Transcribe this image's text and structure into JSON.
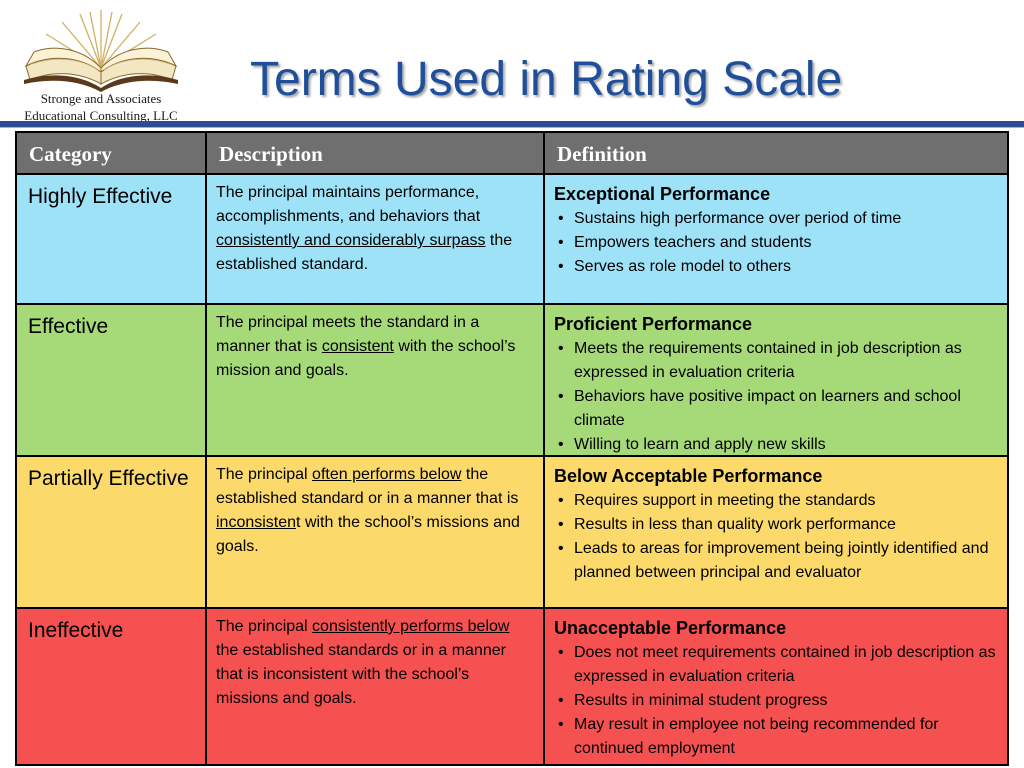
{
  "logo": {
    "line1": "Stronge and Associates",
    "line2": "Educational Consulting, LLC",
    "icon": "open-book-icon"
  },
  "title": "Terms Used in Rating Scale",
  "colors": {
    "title": "#1f4f9a",
    "header_bg": "#6f6f6f",
    "highly_effective_bg": "#9ee2f8",
    "effective_bg": "#a6d978",
    "partially_effective_bg": "#fbd96a",
    "ineffective_bg": "#f55151"
  },
  "table": {
    "headers": [
      "Category",
      "Description",
      "Definition"
    ],
    "rows": [
      {
        "category": "Highly Effective",
        "description": {
          "parts": [
            "The principal maintains performance, accomplishments, and behaviors that ",
            "consistently and considerably surpass",
            " the established standard."
          ]
        },
        "definition_title": "Exceptional Performance",
        "bullets": [
          "Sustains high performance over period of time",
          "Empowers teachers and students",
          "Serves as role model to others"
        ]
      },
      {
        "category": "Effective",
        "description": {
          "parts": [
            "The principal meets the standard in a manner that is ",
            "consistent",
            " with the school’s mission and goals."
          ]
        },
        "definition_title": "Proficient Performance",
        "bullets": [
          "Meets the requirements contained in job description as expressed in evaluation criteria",
          "Behaviors have positive impact on learners and school climate",
          "Willing to learn and apply new skills"
        ]
      },
      {
        "category": "Partially Effective",
        "description": {
          "parts": [
            "The principal ",
            "often performs below",
            " the established standard or in a manner that is ",
            "inconsisten",
            "t with the school’s missions and goals."
          ]
        },
        "definition_title": "Below Acceptable Performance",
        "bullets": [
          "Requires support in meeting the standards",
          "Results in less than quality work performance",
          "Leads to areas for improvement being jointly identified and planned between principal and evaluator"
        ]
      },
      {
        "category": "Ineffective",
        "description": {
          "parts": [
            "The principal ",
            "consistently performs below",
            " the established standards or in a manner that is inconsistent with the school’s missions and goals."
          ]
        },
        "definition_title": "Unacceptable Performance",
        "bullets": [
          "Does not meet requirements contained in job description as expressed in evaluation criteria",
          "Results in minimal student progress",
          "May result in employee not being recommended for continued employment"
        ]
      }
    ]
  }
}
